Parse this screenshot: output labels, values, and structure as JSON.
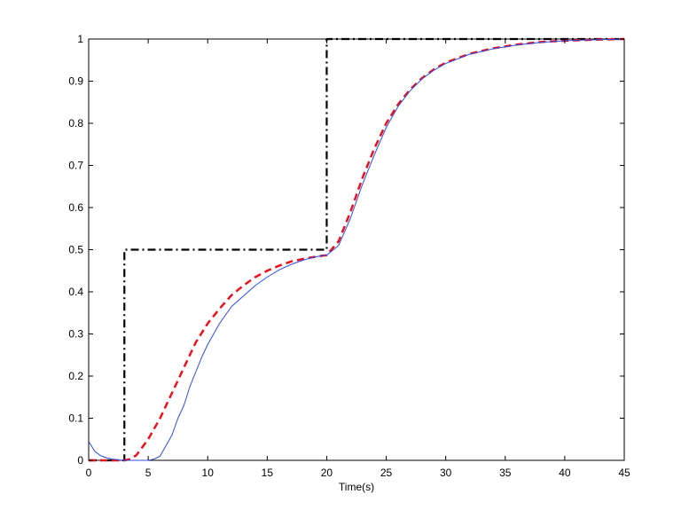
{
  "chart_data": {
    "type": "line",
    "title": "",
    "xlabel": "Time(s)",
    "ylabel": "",
    "xlim": [
      0,
      45
    ],
    "ylim": [
      0,
      1
    ],
    "xticks": [
      0,
      5,
      10,
      15,
      20,
      25,
      30,
      35,
      40,
      45
    ],
    "yticks": [
      0,
      0.1,
      0.2,
      0.3,
      0.4,
      0.5,
      0.6,
      0.7,
      0.8,
      0.9,
      1
    ],
    "xtick_labels": [
      "0",
      "5",
      "10",
      "15",
      "20",
      "25",
      "30",
      "35",
      "40",
      "45"
    ],
    "ytick_labels": [
      "0",
      "0.1",
      "0.2",
      "0.3",
      "0.4",
      "0.5",
      "0.6",
      "0.7",
      "0.8",
      "0.9",
      "1"
    ],
    "grid": false,
    "legend": "none",
    "series": [
      {
        "style": "dashdot",
        "color": "#000000",
        "x": [
          0,
          3,
          3,
          20,
          20,
          45
        ],
        "y": [
          0,
          0,
          0.5,
          0.5,
          1,
          1
        ]
      },
      {
        "style": "dashed",
        "color": "#e8121b",
        "x": [
          0,
          2,
          3,
          3.5,
          4,
          5,
          6,
          7,
          8,
          9,
          10,
          11,
          12,
          13,
          14,
          15,
          16,
          17,
          18,
          19,
          20,
          21,
          22,
          23,
          24,
          25,
          26,
          27,
          28,
          29,
          30,
          32,
          34,
          36,
          38,
          40,
          42,
          45
        ],
        "y": [
          0,
          0,
          0,
          0.003,
          0.012,
          0.05,
          0.1,
          0.16,
          0.22,
          0.28,
          0.325,
          0.36,
          0.392,
          0.415,
          0.435,
          0.45,
          0.462,
          0.472,
          0.478,
          0.483,
          0.487,
          0.52,
          0.59,
          0.67,
          0.74,
          0.8,
          0.845,
          0.88,
          0.907,
          0.928,
          0.944,
          0.965,
          0.978,
          0.987,
          0.993,
          0.996,
          0.998,
          1.0
        ]
      },
      {
        "style": "solid",
        "color": "#2c4ee0",
        "x": [
          0,
          0.5,
          1,
          1.5,
          2,
          2.5,
          3,
          3.5,
          4,
          4.5,
          5,
          5.5,
          6,
          6.5,
          7,
          7.5,
          8,
          8.5,
          9,
          9.5,
          10,
          10.5,
          11,
          11.5,
          12,
          13,
          14,
          15,
          16,
          17,
          18,
          19,
          20,
          21,
          22,
          23,
          24,
          25,
          26,
          27,
          28,
          29,
          30,
          32,
          34,
          36,
          38,
          40,
          42,
          45
        ],
        "y": [
          0.045,
          0.022,
          0.011,
          0.006,
          0.003,
          0.001,
          0.0,
          0.0,
          0.0,
          0.0,
          0.0,
          0.003,
          0.01,
          0.035,
          0.06,
          0.1,
          0.13,
          0.175,
          0.21,
          0.245,
          0.275,
          0.3,
          0.325,
          0.345,
          0.365,
          0.39,
          0.415,
          0.435,
          0.452,
          0.465,
          0.475,
          0.483,
          0.487,
          0.51,
          0.575,
          0.655,
          0.725,
          0.79,
          0.84,
          0.877,
          0.905,
          0.926,
          0.942,
          0.964,
          0.977,
          0.986,
          0.992,
          0.996,
          0.998,
          1.0
        ]
      }
    ]
  }
}
